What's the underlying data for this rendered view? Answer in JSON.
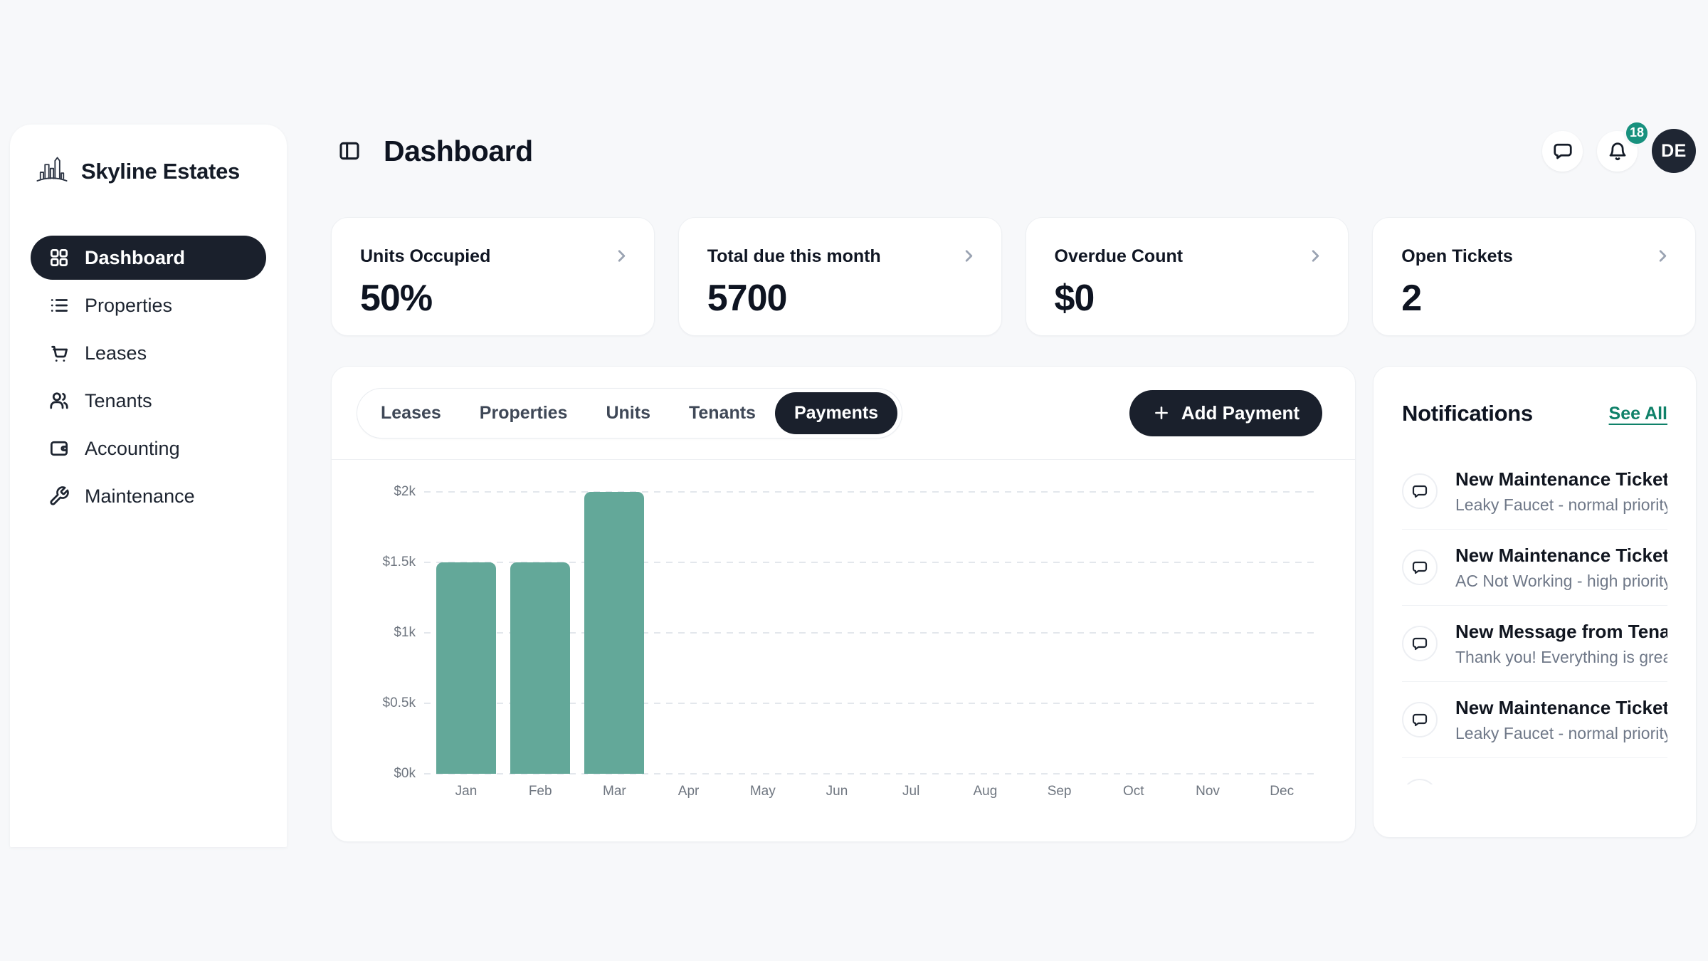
{
  "brand": {
    "name": "Skyline Estates",
    "logo_icon": "skyline-logo-icon"
  },
  "sidebar": {
    "items": [
      {
        "label": "Dashboard",
        "icon": "grid-icon",
        "active": true
      },
      {
        "label": "Properties",
        "icon": "list-icon",
        "active": false
      },
      {
        "label": "Leases",
        "icon": "cart-icon",
        "active": false
      },
      {
        "label": "Tenants",
        "icon": "users-icon",
        "active": false
      },
      {
        "label": "Accounting",
        "icon": "wallet-icon",
        "active": false
      },
      {
        "label": "Maintenance",
        "icon": "wrench-icon",
        "active": false
      }
    ]
  },
  "header": {
    "title": "Dashboard",
    "toggle_icon": "panel-left-icon",
    "chat_icon": "chat-bubble-icon",
    "bell_icon": "bell-icon",
    "notification_badge": "18",
    "avatar_initials": "DE"
  },
  "stat_cards": [
    {
      "label": "Units Occupied",
      "value": "50%"
    },
    {
      "label": "Total due this month",
      "value": "5700"
    },
    {
      "label": "Overdue Count",
      "value": "$0"
    },
    {
      "label": "Open Tickets",
      "value": "2"
    }
  ],
  "content_tabs": {
    "tabs": [
      "Leases",
      "Properties",
      "Units",
      "Tenants",
      "Payments"
    ],
    "active": "Payments"
  },
  "add_payment": {
    "label": "Add Payment",
    "icon": "plus-icon"
  },
  "chart_data": {
    "type": "bar",
    "categories": [
      "Jan",
      "Feb",
      "Mar",
      "Apr",
      "May",
      "Jun",
      "Jul",
      "Aug",
      "Sep",
      "Oct",
      "Nov",
      "Dec"
    ],
    "values": [
      1500,
      1500,
      2000,
      0,
      0,
      0,
      0,
      0,
      0,
      0,
      0,
      0
    ],
    "y_ticks": [
      {
        "label": "$0k",
        "value": 0
      },
      {
        "label": "$0.5k",
        "value": 500
      },
      {
        "label": "$1k",
        "value": 1000
      },
      {
        "label": "$1.5k",
        "value": 1500
      },
      {
        "label": "$2k",
        "value": 2000
      }
    ],
    "ylim": [
      0,
      2000
    ],
    "xlabel": "",
    "ylabel": "",
    "grid": "horizontal-dashed",
    "legend": "none",
    "bar_color": "#63a899"
  },
  "notifications": {
    "title": "Notifications",
    "see_all_label": "See All",
    "items": [
      {
        "icon": "chat-bubble-icon",
        "title": "New Maintenance Ticket",
        "subtitle": "Leaky Faucet - normal priority"
      },
      {
        "icon": "chat-bubble-icon",
        "title": "New Maintenance Ticket",
        "subtitle": "AC Not Working - high priority"
      },
      {
        "icon": "chat-bubble-icon",
        "title": "New Message from Tenant",
        "subtitle": "Thank you! Everything is great so far."
      },
      {
        "icon": "chat-bubble-icon",
        "title": "New Maintenance Ticket",
        "subtitle": "Leaky Faucet - normal priority"
      }
    ],
    "has_more_clipped": true
  },
  "colors": {
    "accent_dark": "#1a202c",
    "bar_teal": "#63a899",
    "badge_teal": "#18917e",
    "link_teal": "#0f8169",
    "page_background": "#f7f8fa"
  }
}
